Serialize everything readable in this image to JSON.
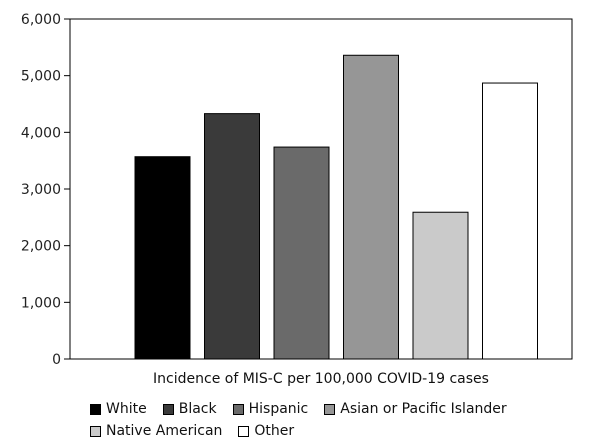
{
  "chart_data": {
    "type": "bar",
    "xlabel": "Incidence of MIS-C per 100,000 COVID-19 cases",
    "ylim": [
      0,
      6000
    ],
    "yticks": [
      0,
      1000,
      2000,
      3000,
      4000,
      5000,
      6000
    ],
    "ytick_labels": [
      "0",
      "1,000",
      "2,000",
      "3,000",
      "4,000",
      "5,000",
      "6,000"
    ],
    "grid": false,
    "legend_position": "bottom",
    "categories": [
      "White",
      "Black",
      "Hispanic",
      "Asian or Pacific Islander",
      "Native American",
      "Other"
    ],
    "values": [
      3570,
      4330,
      3740,
      5360,
      2590,
      4870
    ],
    "colors": [
      "#000000",
      "#3a3a3a",
      "#6a6a6a",
      "#969696",
      "#cacaca",
      "#ffffff"
    ]
  }
}
